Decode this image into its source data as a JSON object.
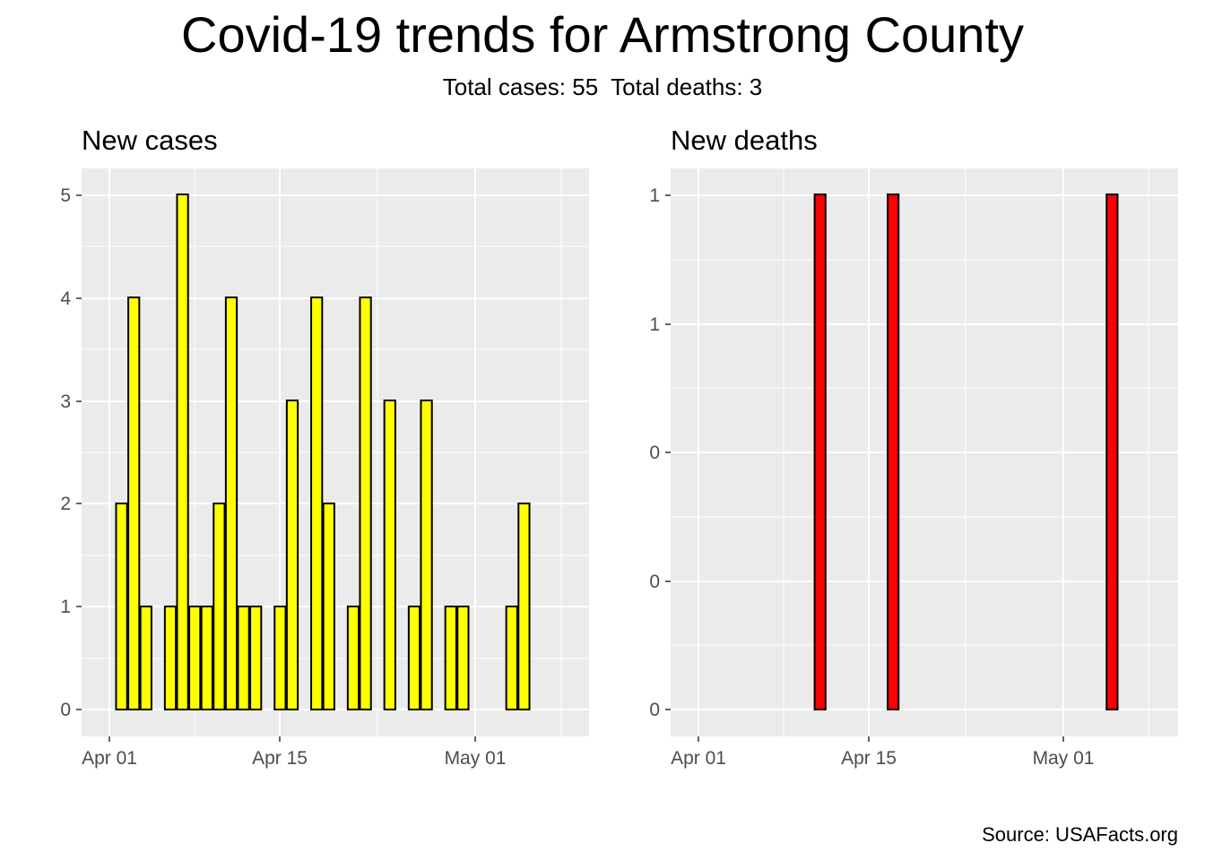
{
  "title": "Covid-19 trends for Armstrong County",
  "subtitle": "Total cases: 55  Total deaths: 3",
  "caption": "Source: USAFacts.org",
  "colors": {
    "panel_bg": "#ebebeb",
    "grid": "#ffffff",
    "cases_fill": "#ffff00",
    "deaths_fill": "#ff0000",
    "bar_outline": "#000000",
    "tick_text": "#4d4d4d"
  },
  "chart_data": [
    {
      "type": "bar",
      "title": "New cases",
      "x_tick_labels": [
        "Apr 01",
        "Apr 15",
        "May 01"
      ],
      "y_tick_labels": [
        "0",
        "1",
        "2",
        "3",
        "4",
        "5"
      ],
      "ylim": [
        -0.25,
        5.25
      ],
      "x": [
        "Apr 01",
        "Apr 02",
        "Apr 03",
        "Apr 04",
        "Apr 05",
        "Apr 06",
        "Apr 07",
        "Apr 08",
        "Apr 09",
        "Apr 10",
        "Apr 11",
        "Apr 12",
        "Apr 13",
        "Apr 14",
        "Apr 15",
        "Apr 16",
        "Apr 17",
        "Apr 18",
        "Apr 19",
        "Apr 20",
        "Apr 21",
        "Apr 22",
        "Apr 23",
        "Apr 24",
        "Apr 25",
        "Apr 26",
        "Apr 27",
        "Apr 28",
        "Apr 29",
        "Apr 30",
        "May 01",
        "May 02",
        "May 03",
        "May 04",
        "May 05",
        "May 06",
        "May 07"
      ],
      "values": [
        0,
        2,
        4,
        1,
        0,
        1,
        5,
        1,
        1,
        2,
        4,
        1,
        1,
        0,
        1,
        3,
        0,
        4,
        2,
        0,
        1,
        4,
        0,
        3,
        0,
        1,
        3,
        0,
        1,
        1,
        0,
        0,
        0,
        1,
        2,
        0,
        0
      ],
      "grid": true
    },
    {
      "type": "bar",
      "title": "New deaths",
      "x_tick_labels": [
        "Apr 01",
        "Apr 15",
        "May 01"
      ],
      "y_tick_labels": [
        "0",
        "0",
        "0",
        "1",
        "1"
      ],
      "ylim": [
        -0.05,
        1.05
      ],
      "x": [
        "Apr 01",
        "Apr 02",
        "Apr 03",
        "Apr 04",
        "Apr 05",
        "Apr 06",
        "Apr 07",
        "Apr 08",
        "Apr 09",
        "Apr 10",
        "Apr 11",
        "Apr 12",
        "Apr 13",
        "Apr 14",
        "Apr 15",
        "Apr 16",
        "Apr 17",
        "Apr 18",
        "Apr 19",
        "Apr 20",
        "Apr 21",
        "Apr 22",
        "Apr 23",
        "Apr 24",
        "Apr 25",
        "Apr 26",
        "Apr 27",
        "Apr 28",
        "Apr 29",
        "Apr 30",
        "May 01",
        "May 02",
        "May 03",
        "May 04",
        "May 05",
        "May 06",
        "May 07",
        "May 08"
      ],
      "values": [
        0,
        0,
        0,
        0,
        0,
        0,
        0,
        0,
        0,
        0,
        1,
        0,
        0,
        0,
        0,
        0,
        1,
        0,
        0,
        0,
        0,
        0,
        0,
        0,
        0,
        0,
        0,
        0,
        0,
        0,
        0,
        0,
        0,
        0,
        1,
        0,
        0,
        0
      ],
      "grid": true
    }
  ]
}
